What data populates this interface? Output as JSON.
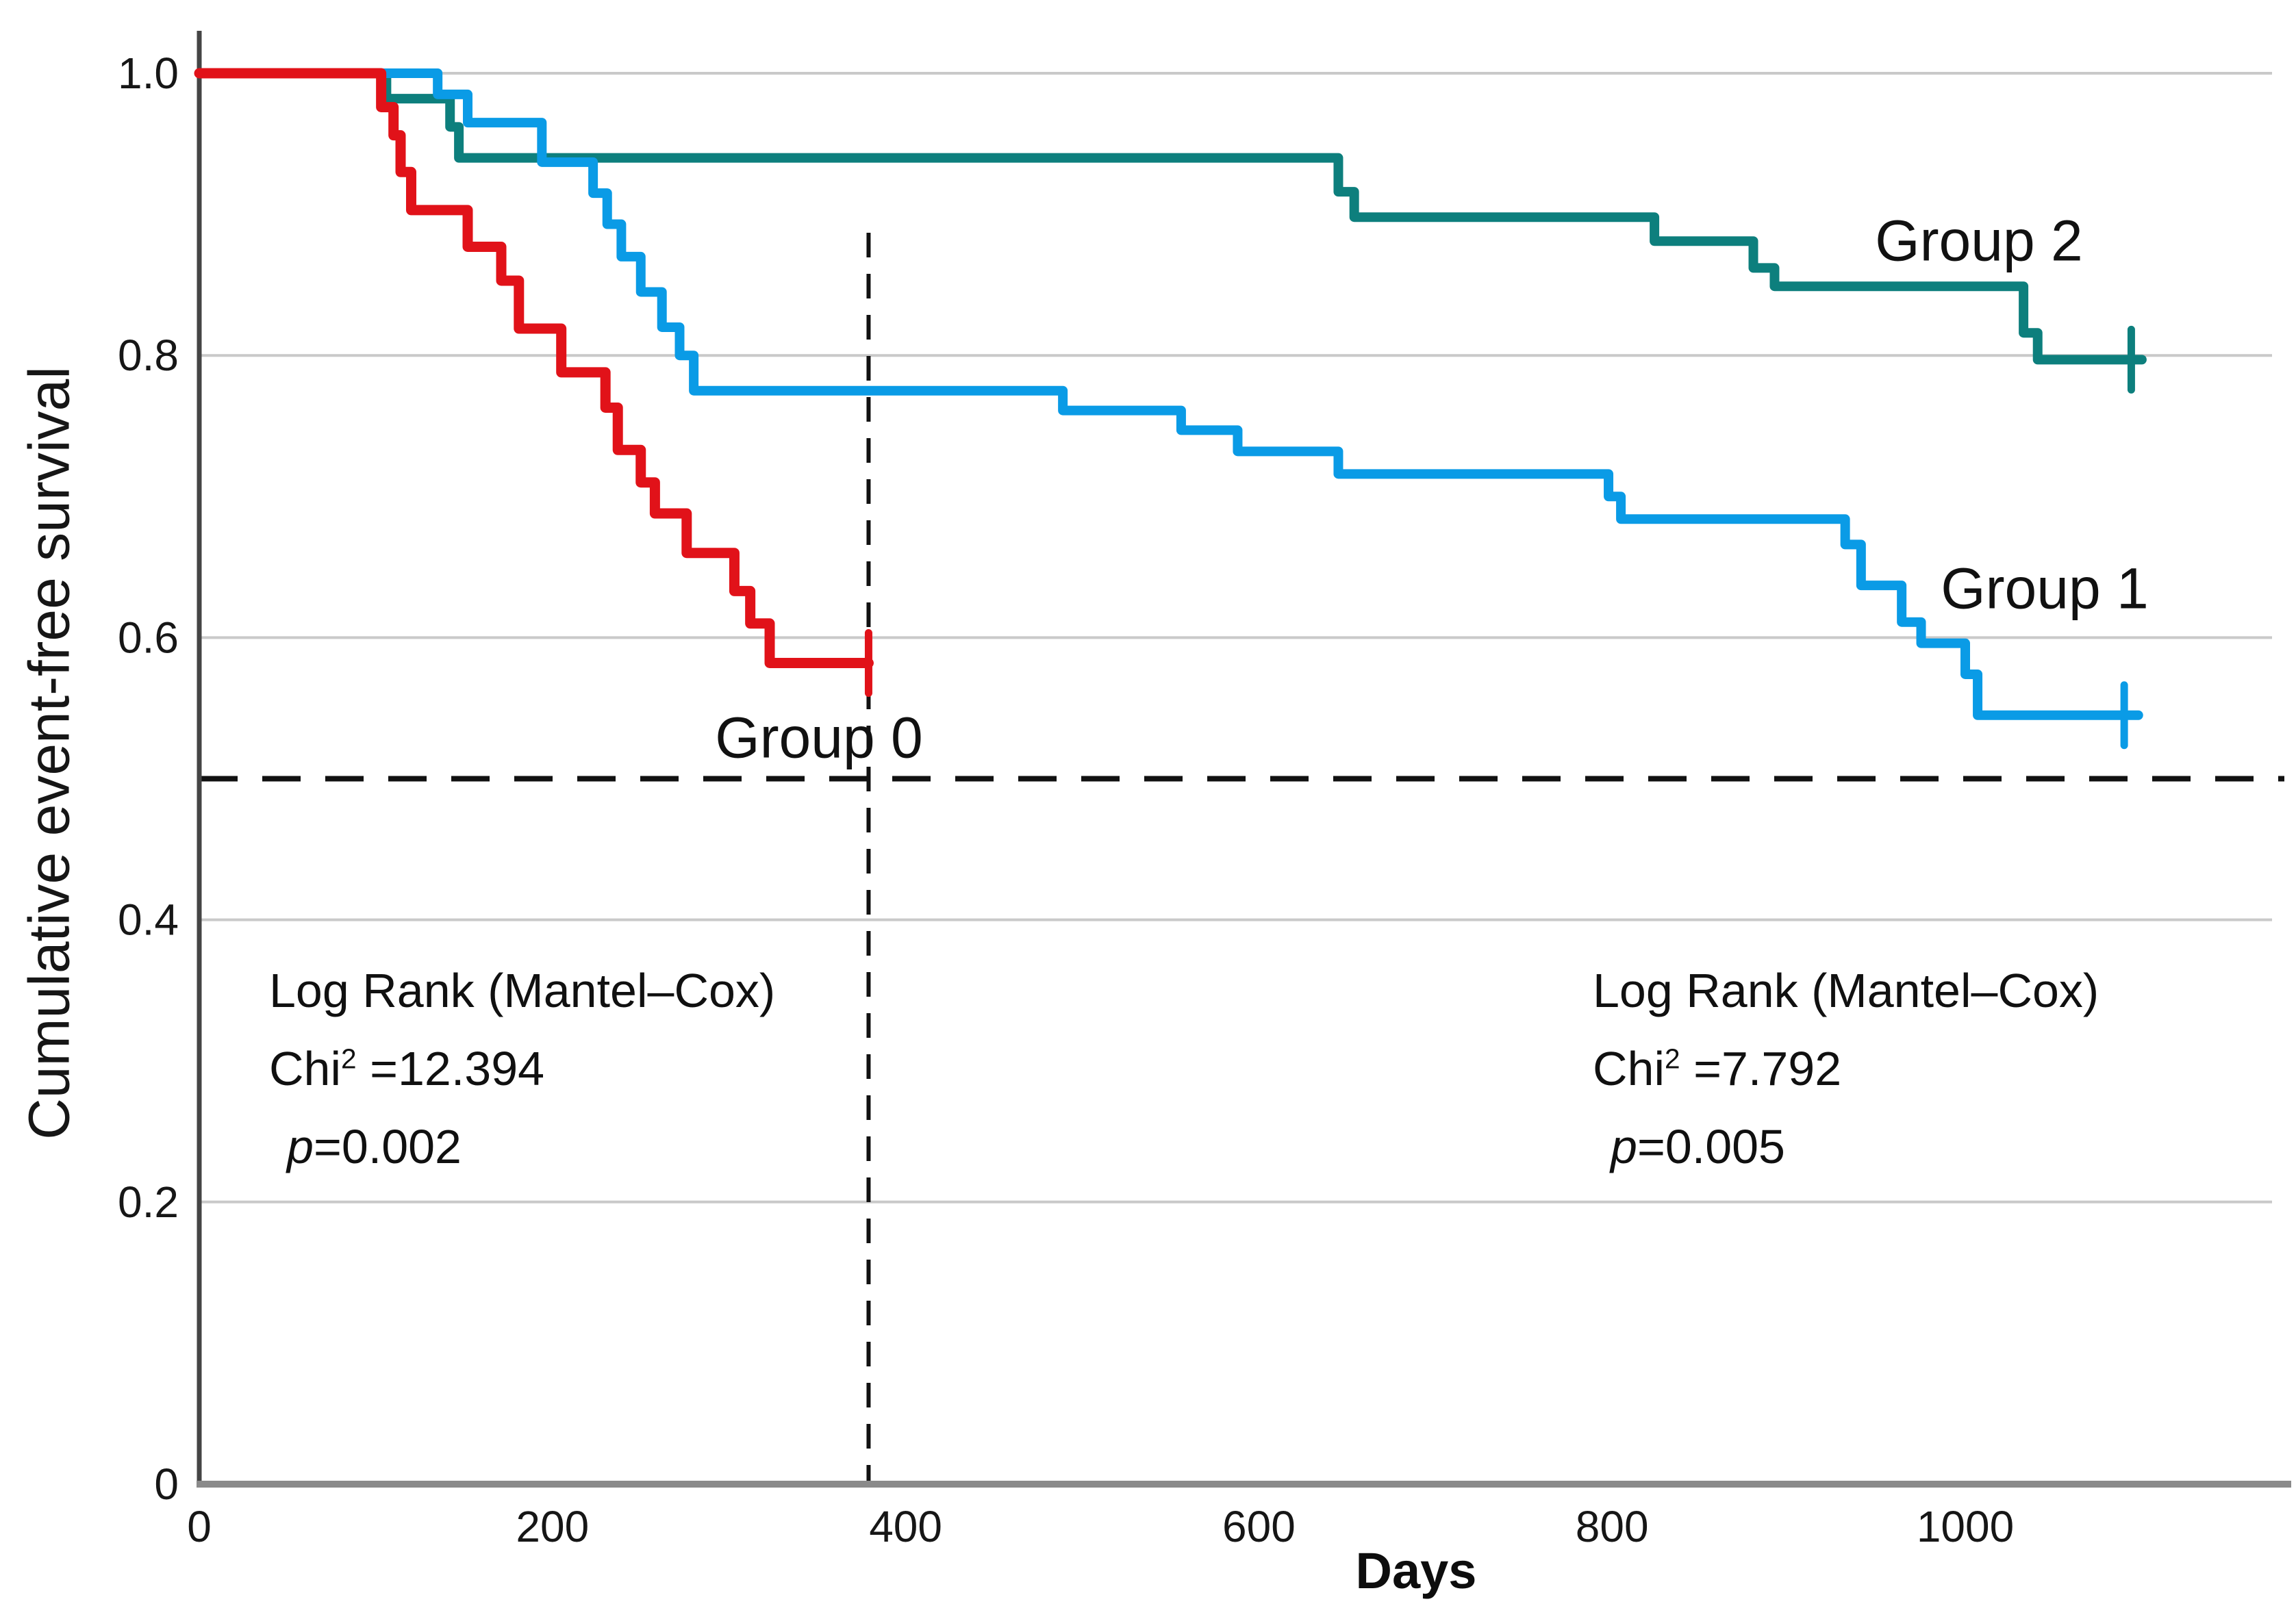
{
  "figure": {
    "background": "#ffffff",
    "text_color": "#111111",
    "gridline_color": "#c9c9c9",
    "axis_spine_color": "#555555",
    "reference_line_color": "#111111"
  },
  "chart_data": {
    "type": "line",
    "subtype": "kaplan-meier-step",
    "title": "",
    "xlabel": "Days",
    "ylabel": "Cumulative event-free survival",
    "xlim": [
      0,
      1174
    ],
    "ylim": [
      0,
      1.0
    ],
    "grid": "horizontal",
    "legend_position": "inline-labels",
    "x_ticks": [
      "0",
      "200",
      "400",
      "600",
      "800",
      "1000"
    ],
    "x_tick_values": [
      0,
      200,
      400,
      600,
      800,
      1000
    ],
    "y_ticks": [
      "1.0",
      "0.8",
      "0.6",
      "0.4",
      "0.2",
      "0"
    ],
    "y_tick_values": [
      1.0,
      0.8,
      0.6,
      0.4,
      0.2,
      0
    ],
    "reference_lines": {
      "horizontal_survival": 0.5,
      "vertical_day": 379
    },
    "series": [
      {
        "name": "Group 0",
        "color": "#e11219",
        "steps": [
          [
            0,
            1.0
          ],
          [
            103,
            0.976
          ],
          [
            110,
            0.956
          ],
          [
            114,
            0.93
          ],
          [
            120,
            0.903
          ],
          [
            152,
            0.877
          ],
          [
            171,
            0.853
          ],
          [
            181,
            0.819
          ],
          [
            205,
            0.788
          ],
          [
            230,
            0.763
          ],
          [
            237,
            0.733
          ],
          [
            250,
            0.71
          ],
          [
            258,
            0.688
          ],
          [
            276,
            0.66
          ],
          [
            303,
            0.633
          ],
          [
            312,
            0.61
          ],
          [
            323,
            0.582
          ]
        ],
        "line_end_day": 379,
        "censor_marks": [
          {
            "day": 379,
            "survival": 0.582
          }
        ]
      },
      {
        "name": "Group 1",
        "color": "#0a9be6",
        "steps": [
          [
            0,
            1.0
          ],
          [
            135,
            0.985
          ],
          [
            152,
            0.965
          ],
          [
            194,
            0.937
          ],
          [
            223,
            0.915
          ],
          [
            231,
            0.893
          ],
          [
            239,
            0.87
          ],
          [
            250,
            0.845
          ],
          [
            262,
            0.82
          ],
          [
            272,
            0.8
          ],
          [
            280,
            0.775
          ],
          [
            489,
            0.761
          ],
          [
            556,
            0.747
          ],
          [
            588,
            0.732
          ],
          [
            645,
            0.716
          ],
          [
            798,
            0.7
          ],
          [
            805,
            0.684
          ],
          [
            932,
            0.666
          ],
          [
            941,
            0.637
          ],
          [
            964,
            0.611
          ],
          [
            975,
            0.596
          ],
          [
            1000,
            0.574
          ],
          [
            1007,
            0.545
          ]
        ],
        "line_end_day": 1098,
        "censor_marks": [
          {
            "day": 1090,
            "survival": 0.545
          }
        ]
      },
      {
        "name": "Group 2",
        "color": "#0d7f7d",
        "steps": [
          [
            0,
            1.0
          ],
          [
            106,
            0.982
          ],
          [
            142,
            0.962
          ],
          [
            147,
            0.94
          ],
          [
            645,
            0.916
          ],
          [
            654,
            0.898
          ],
          [
            824,
            0.881
          ],
          [
            880,
            0.862
          ],
          [
            892,
            0.849
          ],
          [
            1033,
            0.816
          ],
          [
            1041,
            0.797
          ]
        ],
        "line_end_day": 1100,
        "censor_marks": [
          {
            "day": 1094,
            "survival": 0.797
          }
        ]
      }
    ],
    "annotations": {
      "left": {
        "title": "Log Rank (Mantel–Cox)",
        "chi_base": "Chi",
        "chi_sup": "2",
        "chi_rest": " =12.394",
        "p_italic": "p",
        "p_rest": "=0.002"
      },
      "right": {
        "title": "Log Rank (Mantel–Cox)",
        "chi_base": "Chi",
        "chi_sup": "2",
        "chi_rest": " =7.792",
        "p_italic": "p",
        "p_rest": "=0.005"
      }
    }
  }
}
